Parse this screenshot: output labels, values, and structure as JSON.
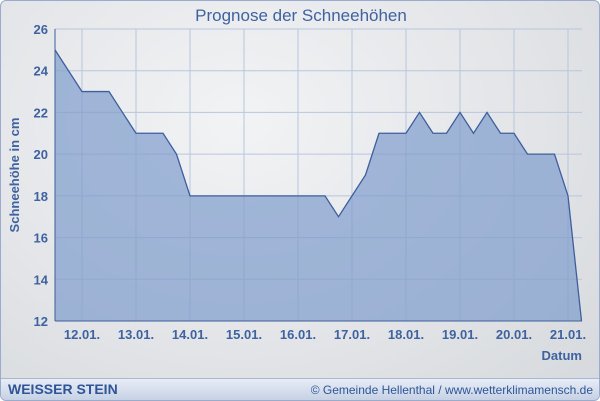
{
  "chart_data": {
    "type": "area",
    "title": "Prognose der Schneehöhen",
    "xlabel": "Datum",
    "ylabel": "Schneehöhe in cm",
    "ylim": [
      12,
      26
    ],
    "yticks": [
      12,
      14,
      16,
      18,
      20,
      22,
      24,
      26
    ],
    "xticks": [
      "12.01.",
      "13.01.",
      "14.01.",
      "15.01.",
      "16.01.",
      "17.01.",
      "18.01.",
      "19.01.",
      "20.01.",
      "21.01."
    ],
    "x_step_hours": 6,
    "x_start": "11.01. 12:00",
    "x_end": "21.01. 06:00",
    "values": [
      25,
      24,
      23,
      23,
      23,
      22,
      21,
      21,
      21,
      20,
      18,
      18,
      18,
      18,
      18,
      18,
      18,
      18,
      18,
      18,
      18,
      17,
      18,
      19,
      21,
      21,
      21,
      22,
      21,
      21,
      22,
      21,
      22,
      21,
      21,
      20,
      20,
      20,
      18,
      12
    ],
    "grid": true,
    "colors": {
      "fill": "#7f9ccc",
      "line": "#3e5f9c",
      "text": "#3f62a0",
      "grid": "#b8c6de"
    }
  },
  "footer": {
    "brand": "WEISSER STEIN",
    "copyright": "© Gemeinde Hellenthal / www.wetterklimamensch.de"
  }
}
